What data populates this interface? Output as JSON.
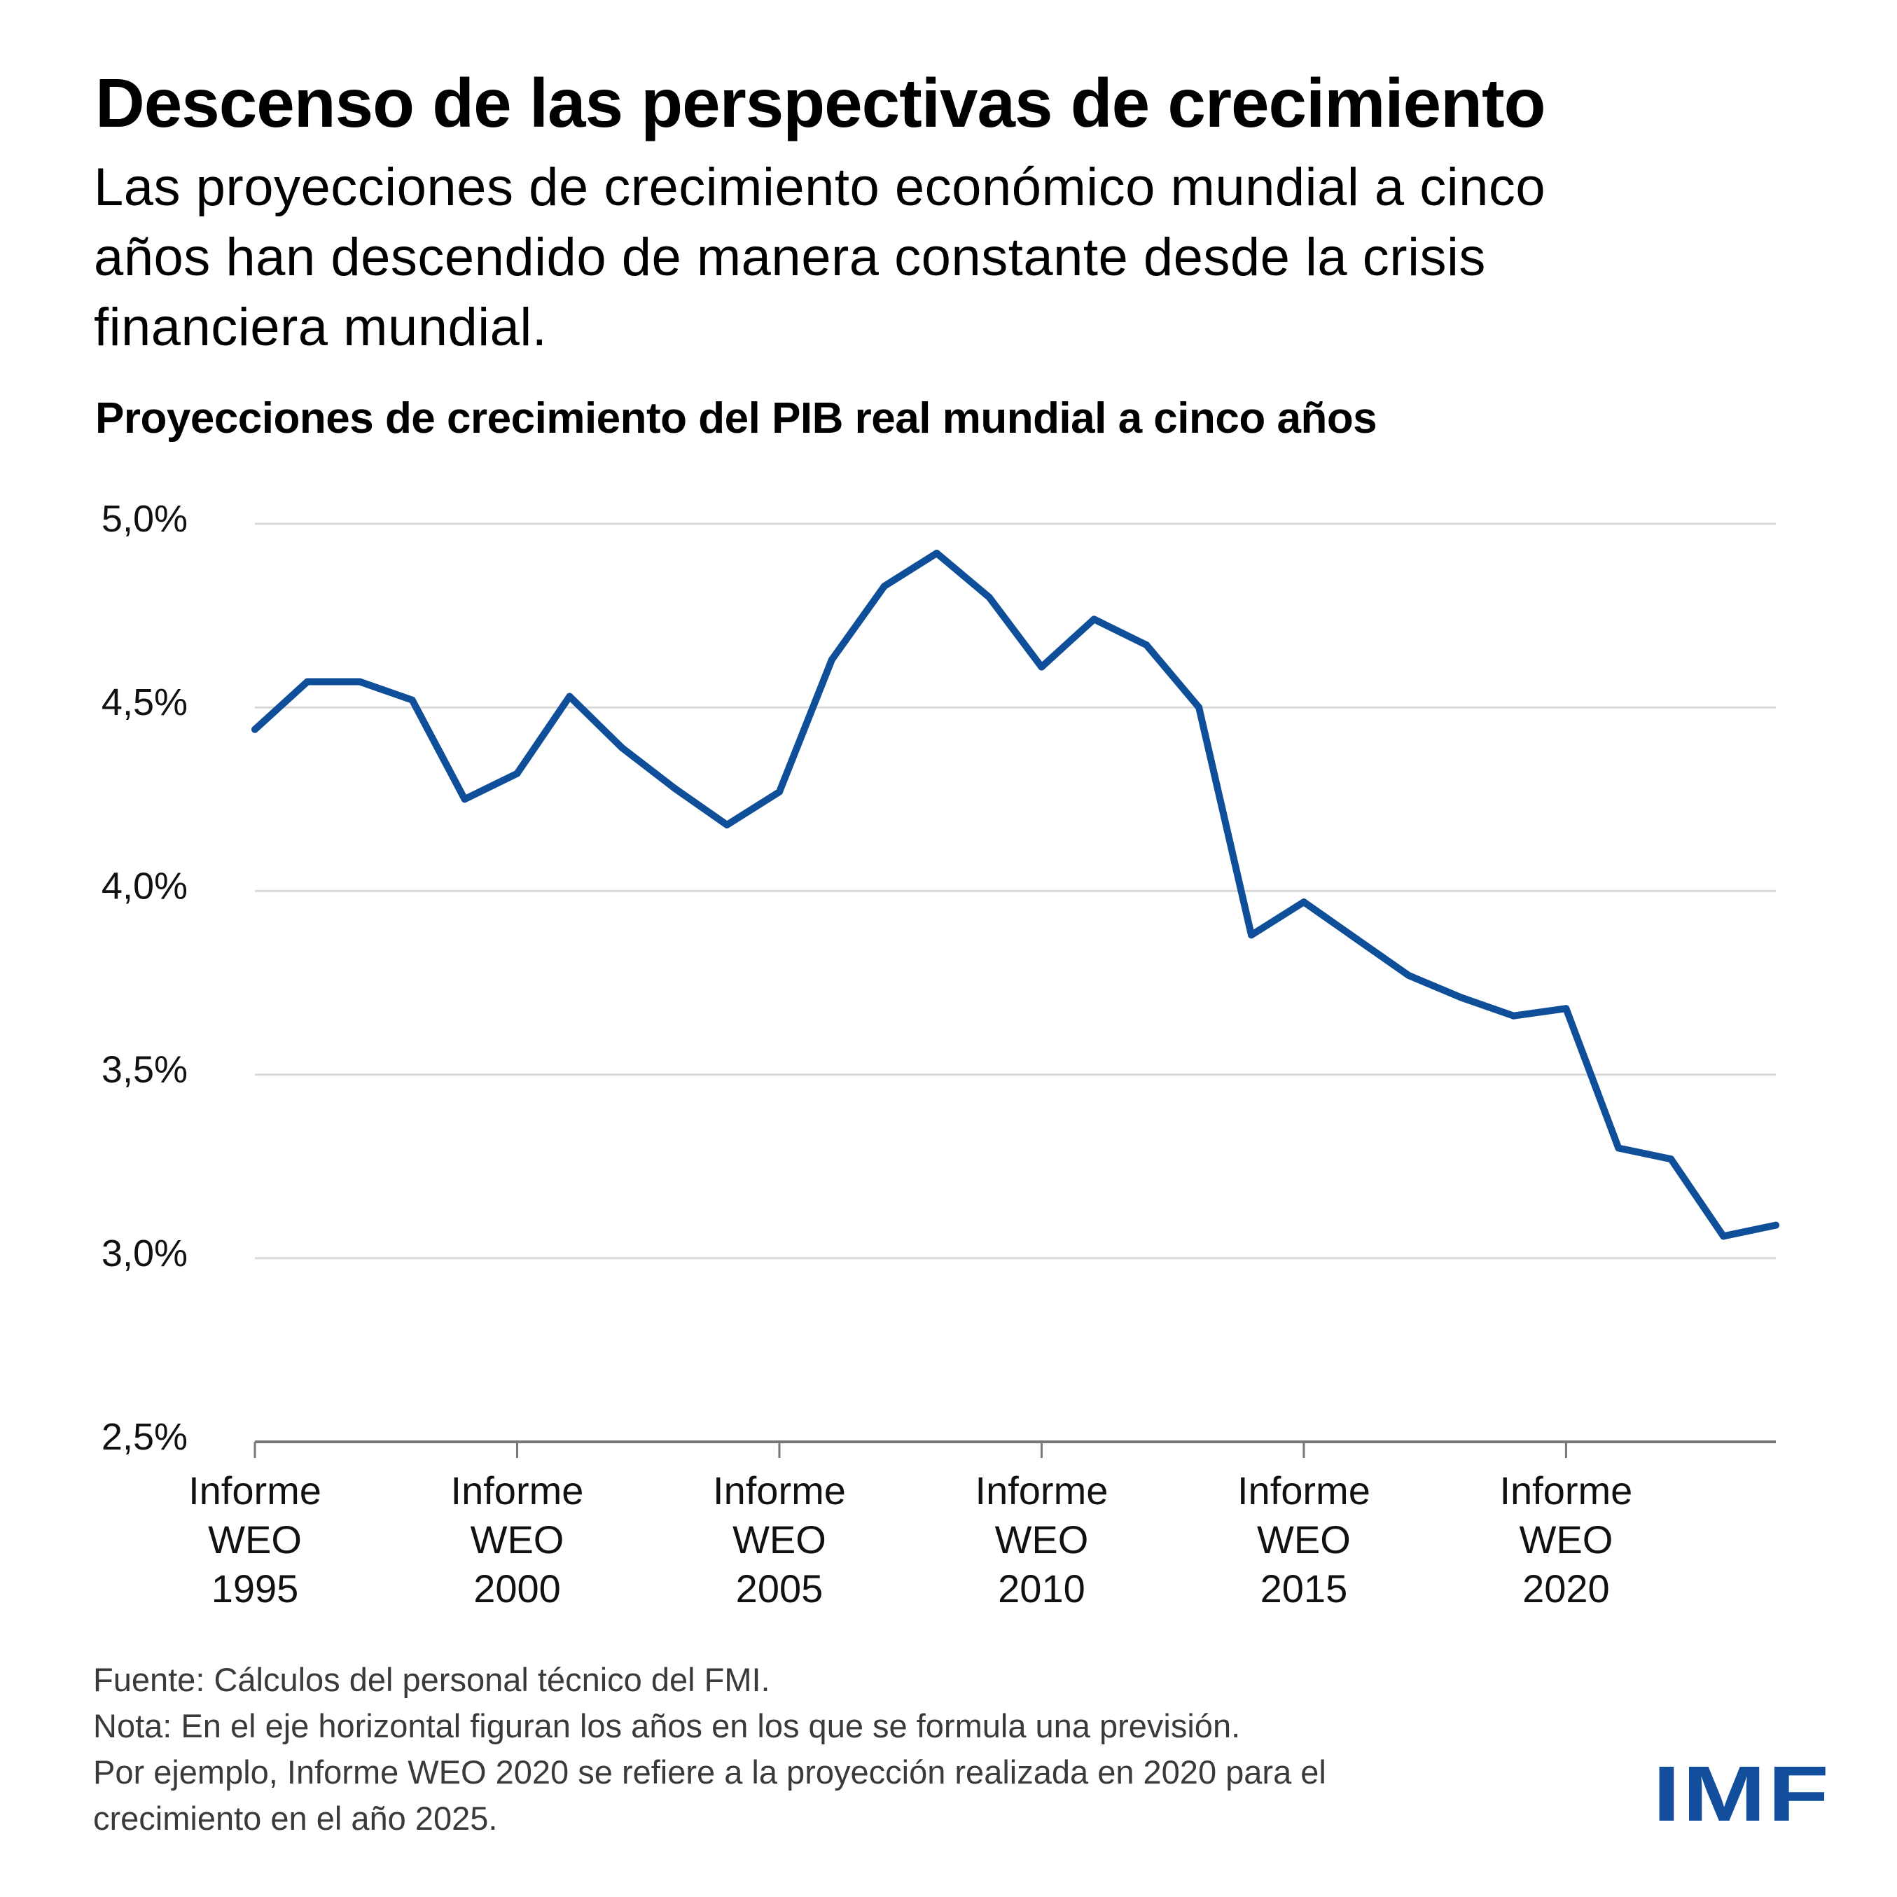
{
  "header": {
    "title": "Descenso de las perspectivas de crecimiento",
    "subtitle_lines": [
      "Las proyecciones de crecimiento económico mundial a cinco",
      "años han descendido de manera constante desde la crisis",
      "financiera mundial."
    ]
  },
  "chart_data": {
    "type": "line",
    "title": "Proyecciones de crecimiento del PIB real mundial a cinco años",
    "xlabel": "",
    "ylabel": "",
    "x": [
      1995,
      1996,
      1997,
      1998,
      1999,
      2000,
      2001,
      2002,
      2003,
      2004,
      2005,
      2006,
      2007,
      2008,
      2009,
      2010,
      2011,
      2012,
      2013,
      2014,
      2015,
      2016,
      2017,
      2018,
      2019,
      2020,
      2021,
      2022,
      2023,
      2024
    ],
    "series": [
      {
        "name": "Proyección de crecimiento del PIB real mundial a cinco años (%)",
        "color": "#0f4e98",
        "values": [
          4.44,
          4.57,
          4.57,
          4.52,
          4.25,
          4.32,
          4.53,
          4.39,
          4.28,
          4.18,
          4.27,
          4.63,
          4.83,
          4.92,
          4.8,
          4.61,
          4.74,
          4.67,
          4.5,
          3.88,
          3.97,
          3.87,
          3.77,
          3.71,
          3.66,
          3.68,
          3.3,
          3.27,
          3.06,
          3.09
        ]
      }
    ],
    "ylim": [
      2.5,
      5.0
    ],
    "xlim": [
      1995,
      2024
    ],
    "y_ticks": [
      5.0,
      4.5,
      4.0,
      3.5,
      3.0,
      2.5
    ],
    "y_tick_labels": [
      "5,0%",
      "4,5%",
      "4,0%",
      "3,5%",
      "3,0%",
      "2,5%"
    ],
    "x_ticks": [
      1995,
      2000,
      2005,
      2010,
      2015,
      2020
    ],
    "x_tick_labels": [
      [
        "Informe",
        "WEO",
        "1995"
      ],
      [
        "Informe",
        "WEO",
        "2000"
      ],
      [
        "Informe",
        "WEO",
        "2005"
      ],
      [
        "Informe",
        "WEO",
        "2010"
      ],
      [
        "Informe",
        "WEO",
        "2015"
      ],
      [
        "Informe",
        "WEO",
        "2020"
      ]
    ],
    "grid": true,
    "legend": "none"
  },
  "footer": {
    "lines": [
      "Fuente: Cálculos del personal técnico del FMI.",
      "Nota: En el eje horizontal figuran los años en los que se formula una previsión.",
      "Por ejemplo, Informe WEO 2020 se refiere a la proyección realizada en 2020 para el",
      "crecimiento en el año 2025."
    ]
  },
  "logo": {
    "text": "IMF",
    "color": "#124e9c"
  }
}
